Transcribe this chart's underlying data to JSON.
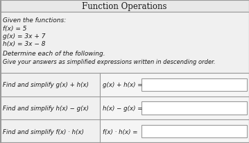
{
  "title": "Function Operations",
  "given_header": "Given the functions:",
  "func1": "f(x) = 5",
  "func2": "g(x) = 3x + 7",
  "func3": "h(x) = 3x − 8",
  "determine_text": "Determine each of the following.",
  "instructions": "Give your answers as simplified expressions written in descending order.",
  "rows": [
    {
      "left": "Find and simplify g(x) + h(x)",
      "right": "g(x) + h(x) ="
    },
    {
      "left": "Find and simplify h(x) − g(x)",
      "right": "h(x) − g(x) ="
    },
    {
      "left": "Find and simplify f(x) · h(x)",
      "right": "f(x) · h(x) ="
    }
  ],
  "outer_bg": "#d0d0d0",
  "title_bg": "#e8e8e8",
  "content_bg": "#f0f0f0",
  "cell_left_bg": "#f0f0f0",
  "cell_right_bg": "#f5f5f5",
  "answer_box_bg": "#ffffff",
  "border_color": "#999999",
  "text_color": "#1a1a1a",
  "title_fontsize": 8.5,
  "body_fontsize": 6.5,
  "col_split": 0.4
}
